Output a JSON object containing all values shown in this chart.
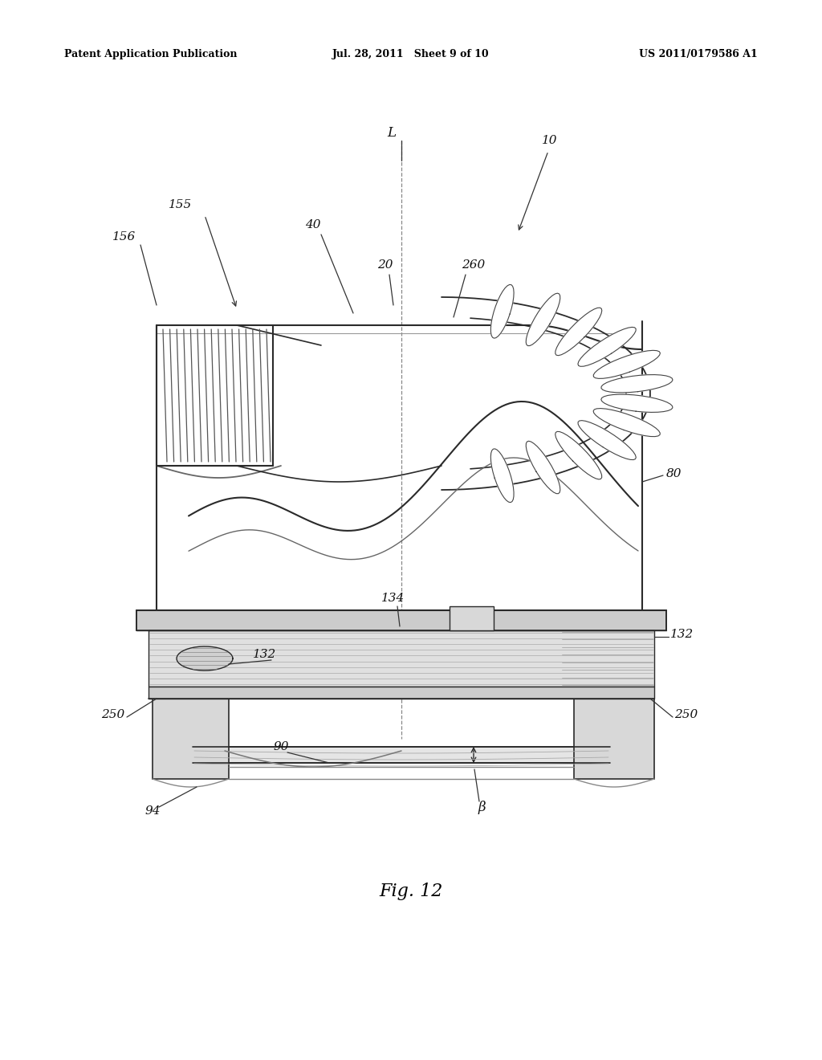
{
  "bg_color": "#ffffff",
  "header_left": "Patent Application Publication",
  "header_mid": "Jul. 28, 2011   Sheet 9 of 10",
  "header_right": "US 2011/0179586 A1",
  "fig_label": "Fig. 12",
  "line_color": "#2a2a2a",
  "fill_light": "#e8e8e8",
  "fill_mid": "#d8d8d8",
  "fill_dark": "#c0c0c0",
  "hatch_color": "#888888"
}
